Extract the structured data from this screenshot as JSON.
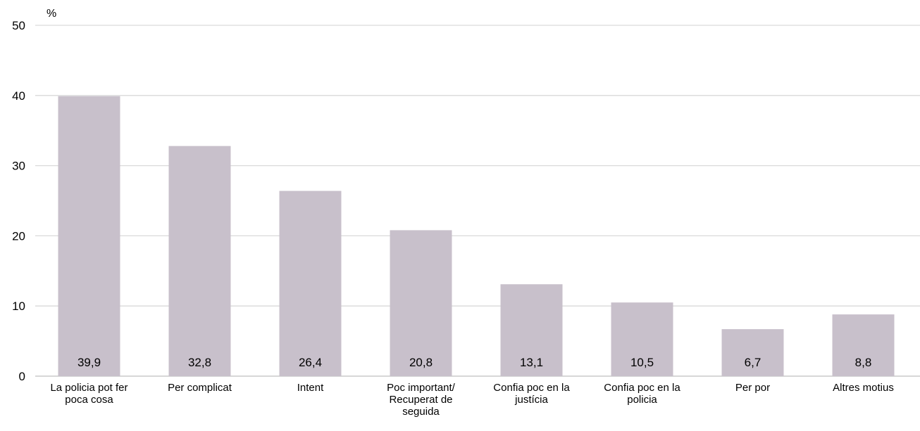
{
  "chart_data": {
    "type": "bar",
    "ylabel": "%",
    "ylim": [
      0,
      50
    ],
    "yticks": [
      0,
      10,
      20,
      30,
      40,
      50
    ],
    "grid": true,
    "categories": [
      [
        "La policia pot fer",
        "poca cosa"
      ],
      [
        "Per complicat"
      ],
      [
        "Intent"
      ],
      [
        "Poc important/",
        "Recuperat de",
        "seguida"
      ],
      [
        "Confia poc en la",
        "justícia"
      ],
      [
        "Confia poc en la",
        "policia"
      ],
      [
        "Per por"
      ],
      [
        "Altres motius"
      ]
    ],
    "values": [
      39.9,
      32.8,
      26.4,
      20.8,
      13.1,
      10.5,
      6.7,
      8.8
    ],
    "data_labels": [
      "39,9",
      "32,8",
      "26,4",
      "20,8",
      "13,1",
      "10,5",
      "6,7",
      "8,8"
    ],
    "colors": {
      "bar": "#c8c0cb",
      "grid": "#d9d9d9",
      "axis": "#bfbfbf"
    }
  }
}
